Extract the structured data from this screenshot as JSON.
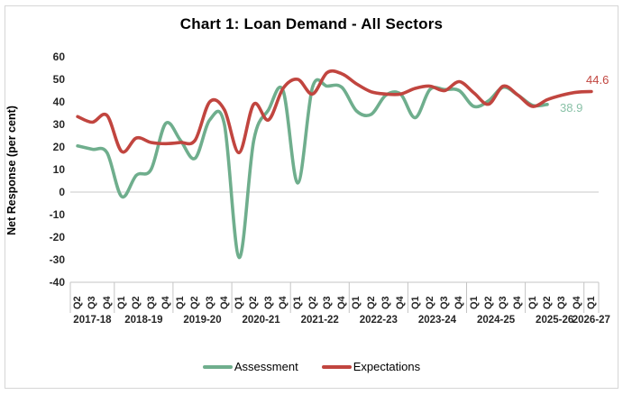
{
  "chart_data": {
    "type": "line",
    "title": "Chart 1: Loan Demand - All Sectors",
    "ylabel": "Net Response (per cent)",
    "xlabel": "",
    "ylim": [
      -40,
      60
    ],
    "y_ticks": [
      60,
      50,
      40,
      30,
      20,
      10,
      0,
      -10,
      -20,
      -30,
      -40
    ],
    "grid": "horizontal zero line only",
    "legend_position": "bottom",
    "x_year_groups": [
      {
        "label": "2017-18",
        "quarters": [
          "Q2",
          "Q3",
          "Q4"
        ]
      },
      {
        "label": "2018-19",
        "quarters": [
          "Q1",
          "Q2",
          "Q3",
          "Q4"
        ]
      },
      {
        "label": "2019-20",
        "quarters": [
          "Q1",
          "Q2",
          "Q3",
          "Q4"
        ]
      },
      {
        "label": "2020-21",
        "quarters": [
          "Q1",
          "Q2",
          "Q3",
          "Q4"
        ]
      },
      {
        "label": "2021-22",
        "quarters": [
          "Q1",
          "Q2",
          "Q3",
          "Q4"
        ]
      },
      {
        "label": "2022-23",
        "quarters": [
          "Q1",
          "Q2",
          "Q3",
          "Q4"
        ]
      },
      {
        "label": "2023-24",
        "quarters": [
          "Q1",
          "Q2",
          "Q3",
          "Q4"
        ]
      },
      {
        "label": "2024-25",
        "quarters": [
          "Q1",
          "Q2",
          "Q3",
          "Q4"
        ]
      },
      {
        "label": "2025-26",
        "quarters": [
          "Q1",
          "Q2",
          "Q3",
          "Q4"
        ]
      },
      {
        "label": "2026-27",
        "quarters": [
          "Q1"
        ]
      }
    ],
    "series": [
      {
        "name": "Assessment",
        "color": "#6FAE8D",
        "end_label": "38.9",
        "end_label_color": "#8AC2A8",
        "values": [
          20.5,
          19,
          17.5,
          -2,
          7.5,
          10,
          30.5,
          23,
          15,
          32,
          30,
          -29,
          23,
          36.5,
          45,
          4,
          46.5,
          47,
          46.5,
          36,
          34.5,
          43,
          43.5,
          33,
          45.5,
          45.5,
          45,
          38,
          40.5,
          46.5,
          43,
          38.5,
          38.9
        ]
      },
      {
        "name": "Expectations",
        "color": "#C1453F",
        "end_label": "44.6",
        "end_label_color": "#C1453F",
        "values": [
          33.5,
          31,
          34,
          18,
          24,
          22,
          21.5,
          22,
          23,
          40,
          36.5,
          17.5,
          39,
          32,
          46,
          50,
          43.5,
          53,
          52.5,
          48,
          44.5,
          43.5,
          43.5,
          46,
          47,
          45,
          49,
          44,
          39,
          47,
          43,
          38,
          41,
          43,
          44.3,
          44.6
        ]
      }
    ]
  }
}
